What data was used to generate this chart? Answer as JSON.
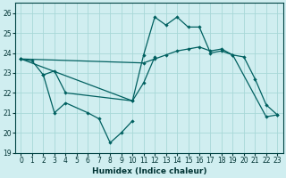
{
  "xlabel": "Humidex (Indice chaleur)",
  "ylabel": "",
  "xlim": [
    -0.5,
    23.5
  ],
  "ylim": [
    19,
    26.5
  ],
  "yticks": [
    19,
    20,
    21,
    22,
    23,
    24,
    25,
    26
  ],
  "xticks": [
    0,
    1,
    2,
    3,
    4,
    5,
    6,
    7,
    8,
    9,
    10,
    11,
    12,
    13,
    14,
    15,
    16,
    17,
    18,
    19,
    20,
    21,
    22,
    23
  ],
  "bg_color": "#d0eef0",
  "grid_color": "#a8d8d8",
  "line_color": "#006060",
  "lines": [
    {
      "x": [
        0,
        11,
        12,
        13,
        14,
        15,
        16,
        17,
        18,
        19,
        20,
        21,
        22,
        23
      ],
      "y": [
        23.7,
        23.5,
        23.7,
        23.9,
        24.1,
        24.2,
        24.3,
        24.1,
        24.2,
        23.9,
        23.8,
        22.7,
        21.4,
        20.9
      ]
    },
    {
      "x": [
        0,
        10,
        11,
        12,
        13,
        14,
        15,
        16,
        17,
        18,
        19,
        22,
        23
      ],
      "y": [
        23.7,
        21.6,
        23.9,
        25.8,
        25.4,
        25.8,
        25.3,
        25.3,
        24.0,
        24.1,
        23.9,
        20.8,
        20.9
      ]
    },
    {
      "x": [
        0,
        1,
        2,
        3,
        4,
        10,
        11,
        12
      ],
      "y": [
        23.7,
        23.6,
        22.9,
        23.1,
        22.0,
        21.6,
        22.5,
        23.8
      ]
    },
    {
      "x": [
        2,
        3,
        4,
        6,
        7,
        8,
        9,
        10
      ],
      "y": [
        22.9,
        21.0,
        21.5,
        21.0,
        20.7,
        19.5,
        20.0,
        20.6
      ]
    }
  ]
}
